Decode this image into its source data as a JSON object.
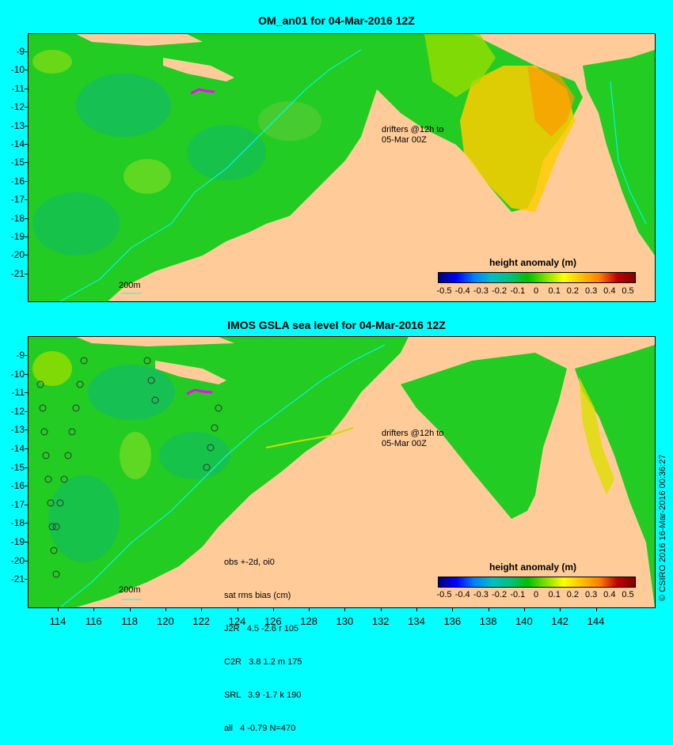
{
  "top": {
    "title": "OM_an01 for 04-Mar-2016 12Z",
    "drifters_line1": "drifters @12h to",
    "drifters_line2": "05-Mar 00Z",
    "scale_label": "200m",
    "colorbar_title": "height anomaly (m)"
  },
  "bottom": {
    "title": "IMOS GSLA sea level  for 04-Mar-2016 12Z",
    "drifters_line1": "drifters @12h to",
    "drifters_line2": "05-Mar 00Z",
    "scale_label": "200m",
    "colorbar_title": "height anomaly (m)",
    "stats": {
      "line1": "obs +-2d, oi0",
      "line2": "sat rms bias (cm)",
      "line3": "J2R   4.5 -2.6 r 105",
      "line4": "C2R   3.8 1.2 m 175",
      "line5": "SRL   3.9 -1.7 k 190",
      "line6": "all   4 -0.79 N=470"
    }
  },
  "colorbar_labels": [
    "-0.5",
    "-0.4",
    "-0.3",
    "-0.2",
    "-0.1",
    "0",
    "0.1",
    "0.2",
    "0.3",
    "0.4",
    "0.5"
  ],
  "colorbar_colors": [
    "#00007f",
    "#0000ff",
    "#0080ff",
    "#00c0c0",
    "#00c080",
    "#00c000",
    "#80e000",
    "#ffff00",
    "#ffc000",
    "#ff8000",
    "#c00000",
    "#800000"
  ],
  "lat_labels_top": [
    "-9",
    "-10",
    "-11",
    "-12",
    "-13",
    "-14",
    "-15",
    "-16",
    "-17",
    "-18",
    "-19",
    "-20",
    "-21"
  ],
  "lat_labels_bottom": [
    "-9",
    "-10",
    "-11",
    "-12",
    "-13",
    "-14",
    "-15",
    "-16",
    "-17",
    "-18",
    "-19",
    "-20",
    "-21"
  ],
  "lon_labels": [
    "114",
    "116",
    "118",
    "120",
    "122",
    "124",
    "126",
    "128",
    "130",
    "132",
    "134",
    "136",
    "138",
    "140",
    "142",
    "144"
  ],
  "credit": "© CSIRO 2016   16-Mar-2016 00:36:27",
  "colors": {
    "land": "#ffcc99",
    "ocean": "#22cc22",
    "background": "#00ffff"
  }
}
